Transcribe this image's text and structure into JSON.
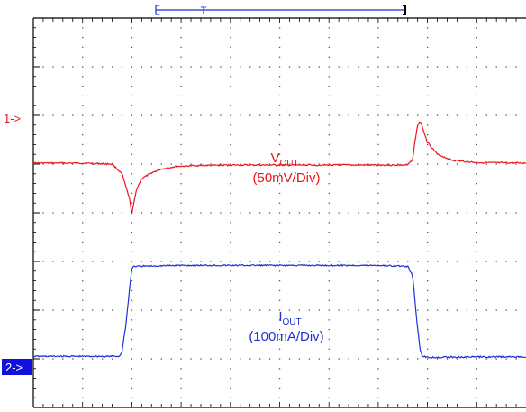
{
  "chart_data": {
    "type": "line",
    "title": "",
    "xlabel": "",
    "ylabel": "",
    "divisions": {
      "x": 10,
      "y": 8
    },
    "xlim": [
      0,
      10
    ],
    "ylim": [
      -4,
      4
    ],
    "grid": true,
    "series": [
      {
        "name": "",
        "channel_marker": "1->",
        "color": "#e8141c",
        "label_main": "V",
        "label_sub": "OUT",
        "label_scale": "(50mV/Div)",
        "x": [
          0,
          1.0,
          1.6,
          1.8,
          1.95,
          2.0,
          2.05,
          2.1,
          2.2,
          2.4,
          2.6,
          2.9,
          3.3,
          4.0,
          5.0,
          6.0,
          7.0,
          7.6,
          7.7,
          7.75,
          7.8,
          7.85,
          7.9,
          8.0,
          8.2,
          8.5,
          9.0,
          10.0
        ],
        "y": [
          1.02,
          1.02,
          1.0,
          0.8,
          0.3,
          -0.02,
          0.25,
          0.5,
          0.7,
          0.82,
          0.9,
          0.95,
          0.97,
          0.98,
          0.98,
          0.98,
          0.98,
          0.98,
          1.1,
          1.5,
          1.8,
          1.88,
          1.75,
          1.45,
          1.2,
          1.08,
          1.03,
          1.02
        ]
      },
      {
        "name": "",
        "channel_marker": "2->",
        "color": "#1f2fd6",
        "label_main": "I",
        "label_sub": "OUT",
        "label_scale": "(100mA/Div)",
        "x": [
          0,
          1.75,
          1.8,
          1.88,
          1.96,
          2.0,
          2.03,
          2.1,
          3.0,
          4.0,
          5.0,
          6.0,
          7.0,
          7.6,
          7.7,
          7.78,
          7.85,
          7.9,
          8.0,
          9.0,
          10.0
        ],
        "y": [
          -2.95,
          -2.95,
          -2.85,
          -2.3,
          -1.5,
          -1.15,
          -1.1,
          -1.1,
          -1.08,
          -1.08,
          -1.08,
          -1.08,
          -1.08,
          -1.1,
          -1.3,
          -2.2,
          -2.8,
          -2.95,
          -2.97,
          -2.96,
          -2.96
        ]
      }
    ],
    "trigger_bar": {
      "marker": "T"
    }
  }
}
